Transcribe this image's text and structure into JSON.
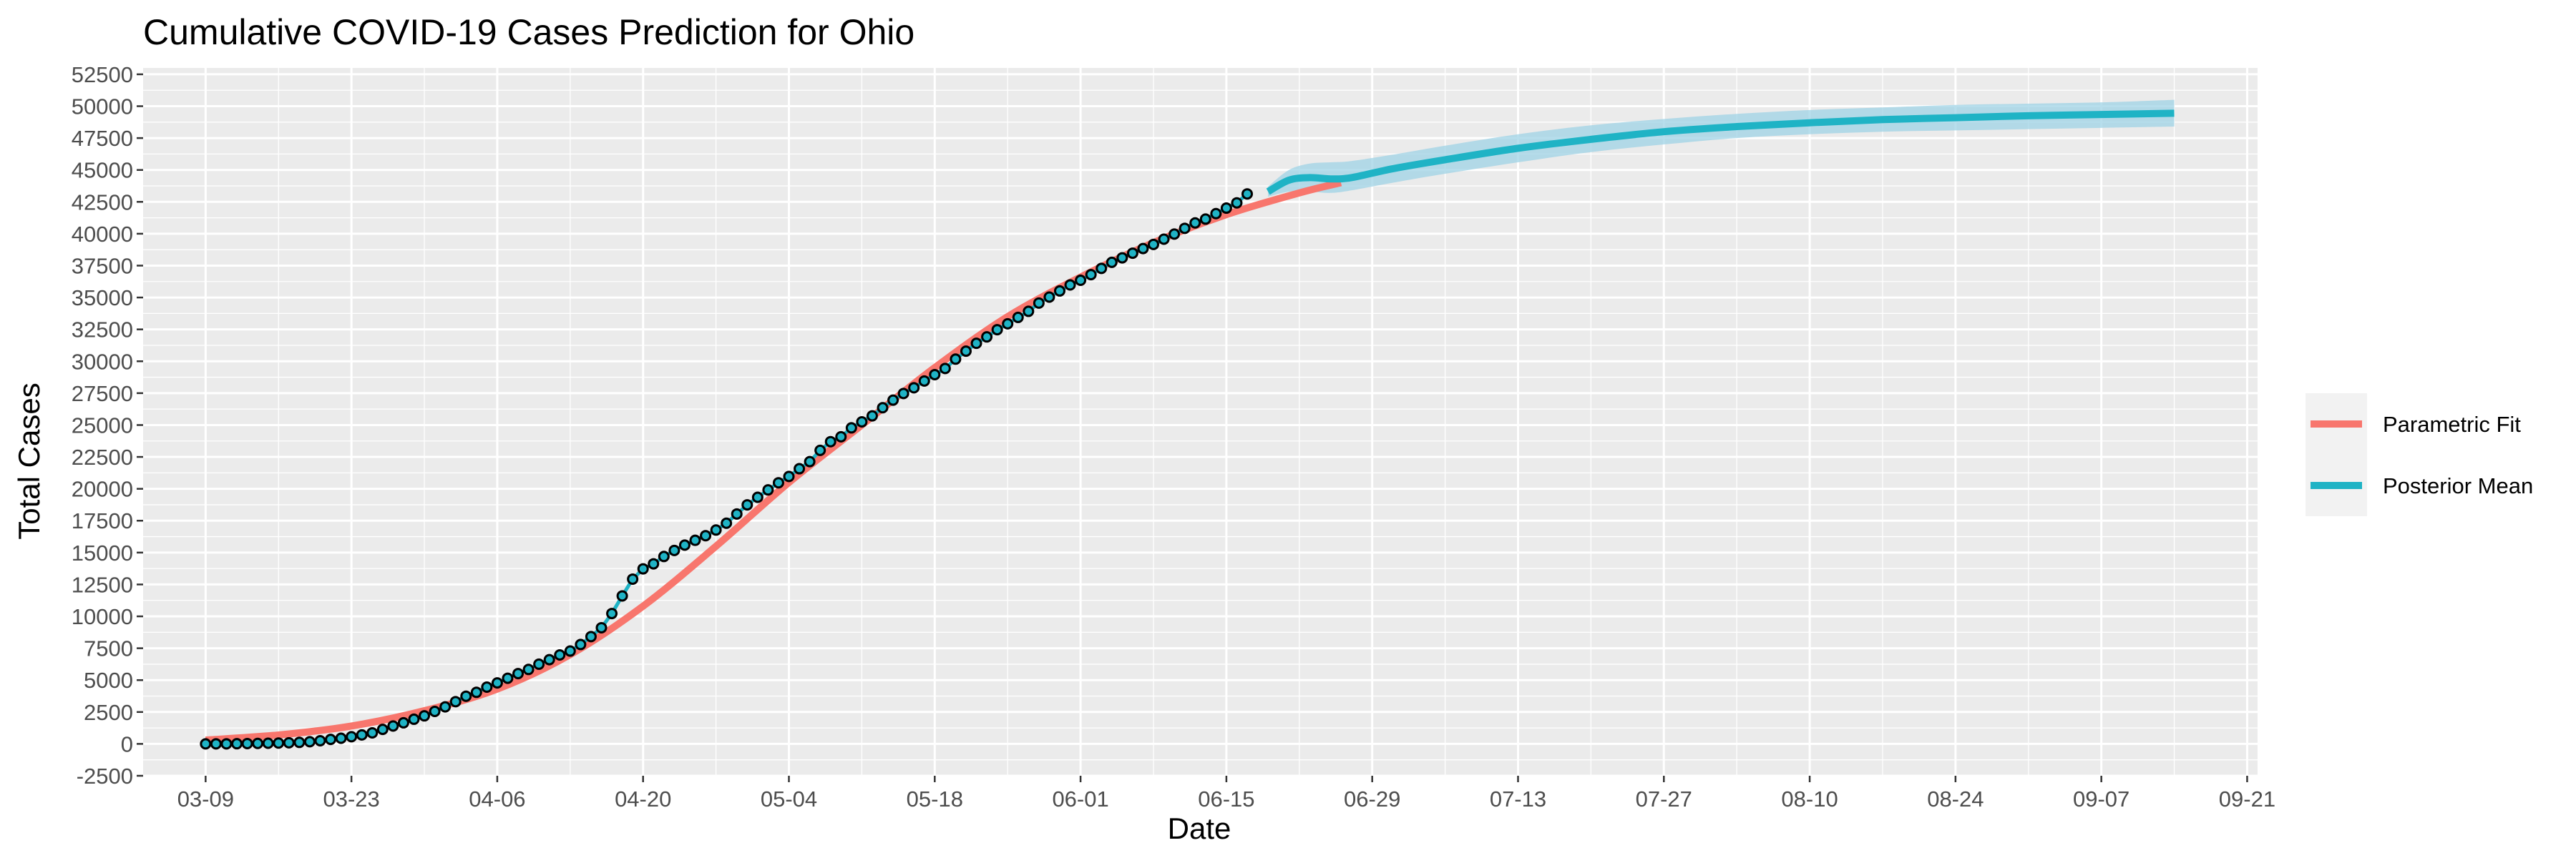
{
  "chart_data": {
    "type": "line",
    "title": "Cumulative COVID-19 Cases Prediction for Ohio",
    "xlabel": "Date",
    "ylabel": "Total Cases",
    "x_axis": "date",
    "year": 2020,
    "xlim": [
      "2020-03-03",
      "2020-09-22"
    ],
    "ylim": [
      -2500,
      53000
    ],
    "x_ticks": [
      "03-09",
      "03-23",
      "04-06",
      "04-20",
      "05-04",
      "05-18",
      "06-01",
      "06-15",
      "06-29",
      "07-13",
      "07-27",
      "08-10",
      "08-24",
      "09-07",
      "09-21"
    ],
    "y_ticks": [
      -2500,
      0,
      2500,
      5000,
      7500,
      10000,
      12500,
      15000,
      17500,
      20000,
      22500,
      25000,
      27500,
      30000,
      32500,
      35000,
      37500,
      40000,
      42500,
      45000,
      47500,
      50000,
      52500
    ],
    "grid": true,
    "legend_position": "right",
    "legend": [
      {
        "label": "Parametric Fit",
        "color": "#f8766d"
      },
      {
        "label": "Posterior Mean",
        "color": "#1fb3c5"
      }
    ],
    "series": [
      {
        "name": "Parametric Fit",
        "color": "#f8766d",
        "style": "line",
        "x": [
          "2020-03-09",
          "2020-03-16",
          "2020-03-23",
          "2020-03-30",
          "2020-04-06",
          "2020-04-13",
          "2020-04-20",
          "2020-04-27",
          "2020-05-04",
          "2020-05-11",
          "2020-05-18",
          "2020-05-25",
          "2020-06-01",
          "2020-06-08",
          "2020-06-15",
          "2020-06-22",
          "2020-06-26"
        ],
        "y": [
          300,
          700,
          1400,
          2600,
          4300,
          7000,
          10800,
          15500,
          20500,
          25000,
          29500,
          33500,
          36600,
          39300,
          41500,
          43200,
          44000
        ]
      },
      {
        "name": "Posterior Mean",
        "color": "#1fb3c5",
        "style": "line",
        "x": [
          "2020-06-19",
          "2020-06-21",
          "2020-06-23",
          "2020-06-25",
          "2020-06-27",
          "2020-07-01",
          "2020-07-06",
          "2020-07-13",
          "2020-07-20",
          "2020-07-27",
          "2020-08-03",
          "2020-08-10",
          "2020-08-17",
          "2020-08-24",
          "2020-08-31",
          "2020-09-07",
          "2020-09-14"
        ],
        "y": [
          43300,
          44200,
          44400,
          44300,
          44400,
          45100,
          45800,
          46700,
          47400,
          48000,
          48400,
          48700,
          48950,
          49100,
          49250,
          49350,
          49450
        ]
      },
      {
        "name": "Posterior Band",
        "color": "#1fb3c5",
        "style": "ribbon",
        "x": [
          "2020-06-19",
          "2020-06-21",
          "2020-06-23",
          "2020-06-25",
          "2020-06-27",
          "2020-07-01",
          "2020-07-06",
          "2020-07-13",
          "2020-07-20",
          "2020-07-27",
          "2020-08-03",
          "2020-08-10",
          "2020-08-17",
          "2020-08-24",
          "2020-08-31",
          "2020-09-07",
          "2020-09-14"
        ],
        "lower": [
          42900,
          43300,
          43300,
          43200,
          43400,
          44000,
          44700,
          45600,
          46400,
          47000,
          47500,
          47800,
          48000,
          48100,
          48200,
          48300,
          48400
        ],
        "upper": [
          43700,
          45000,
          45500,
          45600,
          45700,
          46200,
          46900,
          47800,
          48500,
          49000,
          49400,
          49700,
          49900,
          50100,
          50200,
          50300,
          50500
        ]
      },
      {
        "name": "Observed",
        "color": "#1fb3c5",
        "style": "points",
        "start_date": "2020-03-09",
        "y": [
          3,
          4,
          5,
          13,
          26,
          37,
          50,
          67,
          88,
          119,
          169,
          247,
          351,
          442,
          564,
          704,
          867,
          1137,
          1406,
          1653,
          1933,
          2199,
          2547,
          2902,
          3312,
          3739,
          4043,
          4450,
          4782,
          5148,
          5512,
          5836,
          6250,
          6604,
          6975,
          7280,
          7791,
          8414,
          9107,
          10222,
          11602,
          12919,
          13725,
          14117,
          14694,
          15169,
          15587,
          15963,
          16325,
          16769,
          17303,
          18027,
          18743,
          19335,
          19914,
          20474,
          20969,
          21576,
          22131,
          23016,
          23697,
          24081,
          24777,
          25250,
          25721,
          26357,
          26954,
          27474,
          27923,
          28454,
          28952,
          29436,
          30167,
          30794,
          31408,
          31911,
          32477,
          32936,
          33439,
          33915,
          34566,
          35034,
          35513,
          35984,
          36350,
          36792,
          37282,
          37758,
          38111,
          38476,
          38837,
          39162,
          39575,
          39972,
          40424,
          40848,
          41148,
          41576,
          42010,
          42422,
          43122
        ]
      }
    ]
  }
}
